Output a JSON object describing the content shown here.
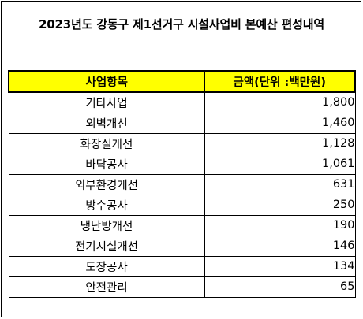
{
  "title": "2023년도 강동구 제1선거구 시설사업비 본예산 편성내역",
  "table": {
    "headers": [
      "사업항목",
      "금액(단위 :백만원)"
    ],
    "rows": [
      {
        "item": "기타사업",
        "amount": "1,800"
      },
      {
        "item": "외벽개선",
        "amount": "1,460"
      },
      {
        "item": "화장실개선",
        "amount": "1,128"
      },
      {
        "item": "바닥공사",
        "amount": "1,061"
      },
      {
        "item": "외부환경개선",
        "amount": "631"
      },
      {
        "item": "방수공사",
        "amount": "250"
      },
      {
        "item": "냉난방개선",
        "amount": "190"
      },
      {
        "item": "전기시설개선",
        "amount": "146"
      },
      {
        "item": "도장공사",
        "amount": "134"
      },
      {
        "item": "안전관리",
        "amount": "65"
      }
    ]
  },
  "colors": {
    "header_background": "#ffff00",
    "border": "#000000",
    "text": "#000000"
  }
}
